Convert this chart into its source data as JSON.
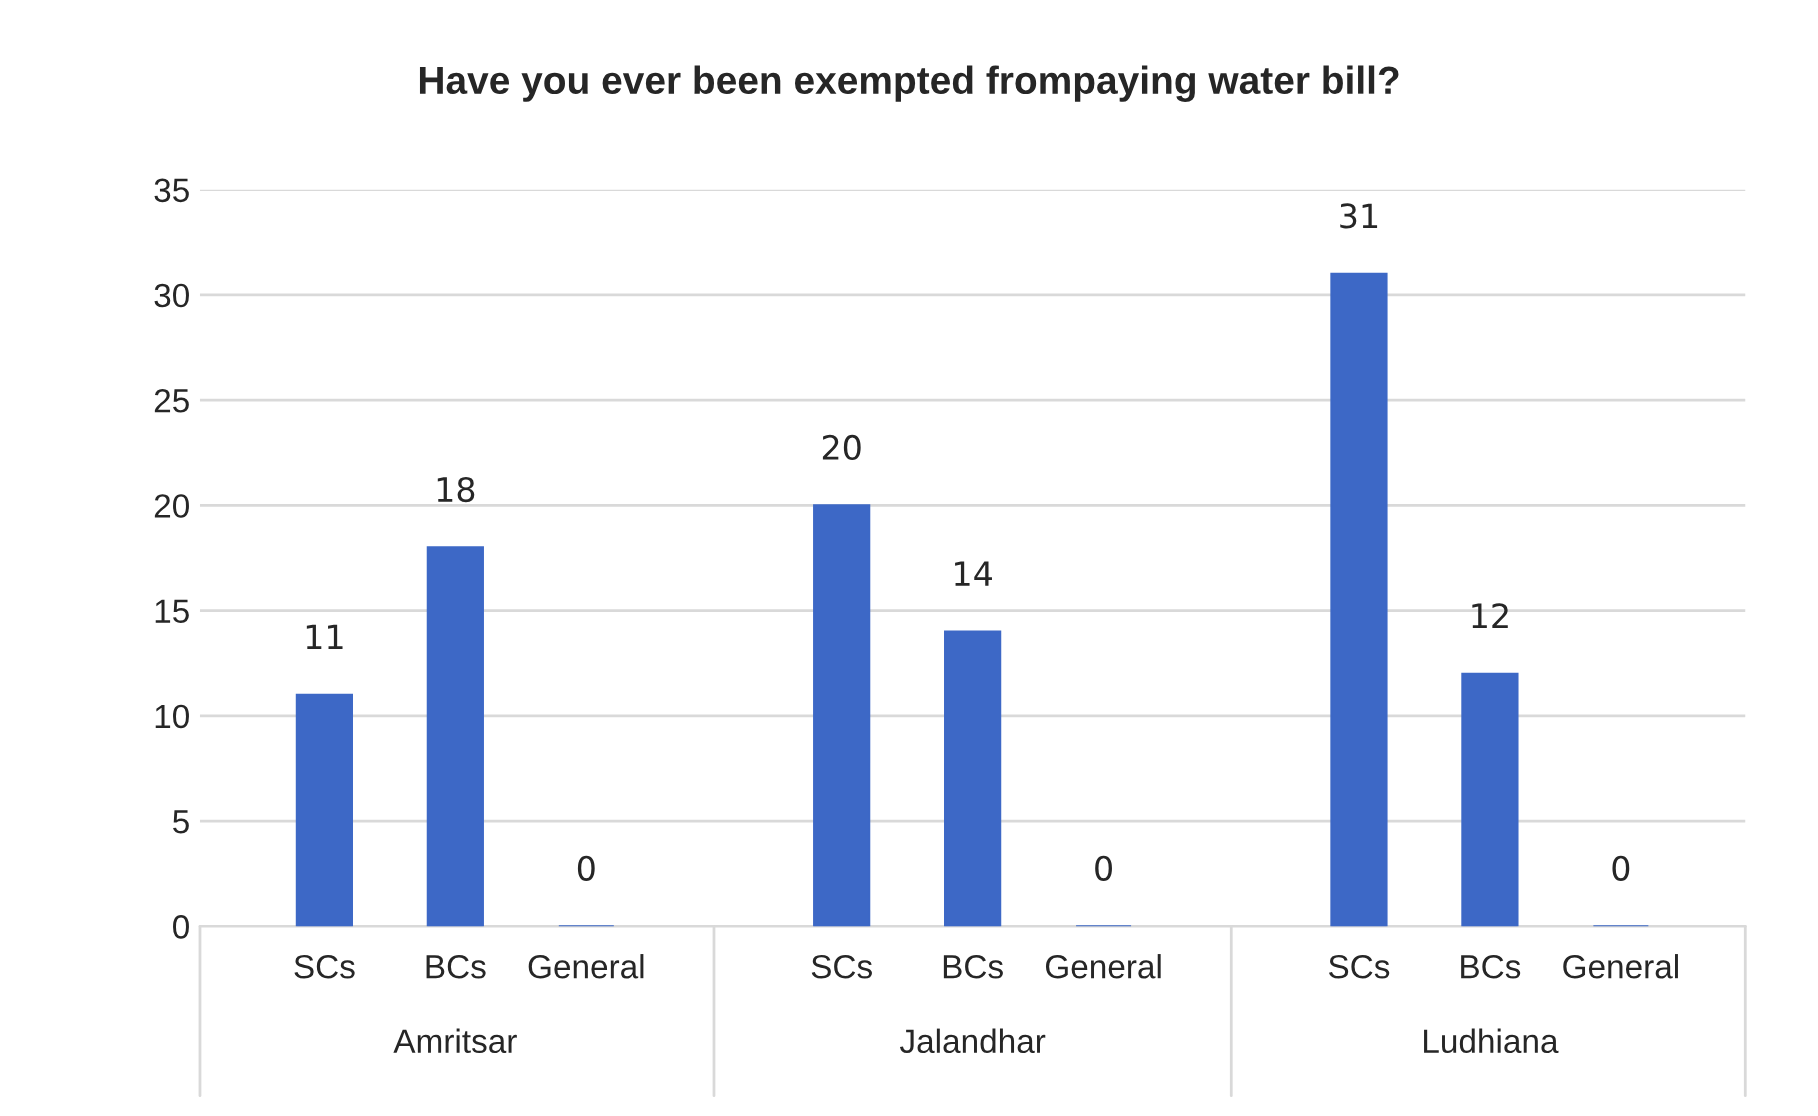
{
  "chart_data": {
    "type": "bar",
    "title": "Have you ever been exempted frompaying water bill?",
    "categories": [
      "SCs",
      "BCs",
      "General",
      "SCs",
      "BCs",
      "General",
      "SCs",
      "BCs",
      "General"
    ],
    "values": [
      11,
      18,
      0,
      20,
      14,
      0,
      31,
      12,
      0
    ],
    "color": "#3d68c6",
    "data_labels": true,
    "ylim": [
      0,
      35
    ],
    "yticks": [
      0,
      5,
      10,
      15,
      20,
      25,
      30,
      35
    ],
    "grid": "y",
    "annotations": [
      "Amritsar",
      "Jalandhar",
      "Ludhiana"
    ]
  }
}
